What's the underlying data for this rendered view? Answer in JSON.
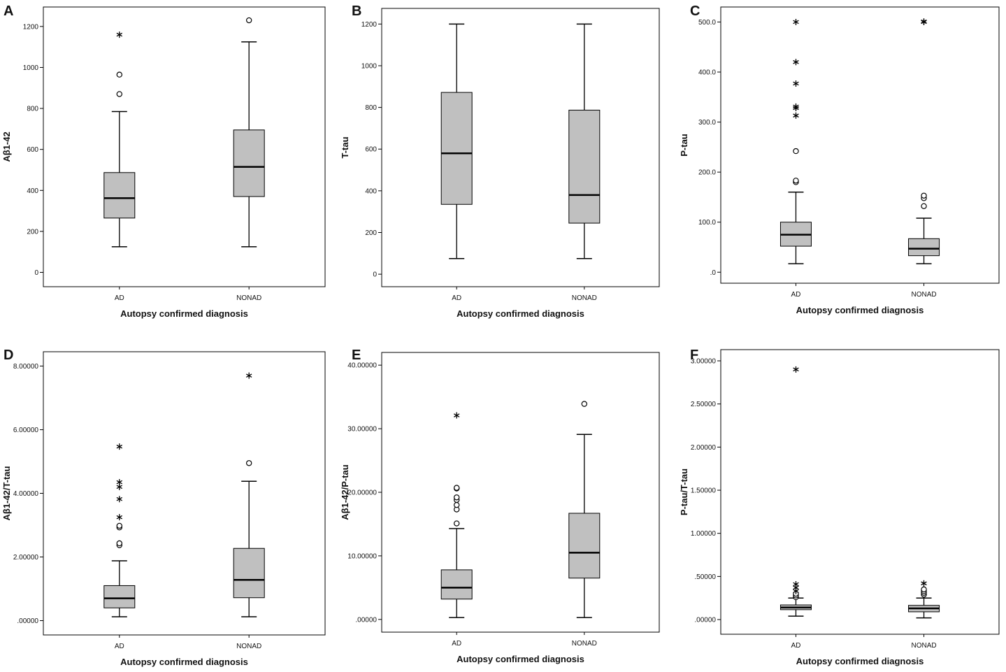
{
  "chart_data": [
    {
      "type": "box",
      "panel": "A",
      "ylabel": "Aβ1-42",
      "xlabel": "Autopsy confirmed diagnosis",
      "categories": [
        "AD",
        "NONAD"
      ],
      "ylim": [
        -70,
        1295
      ],
      "yticks": [
        0,
        200,
        400,
        600,
        800,
        1000,
        1200
      ],
      "ytick_labels": [
        "0",
        "200",
        "400",
        "600",
        "800",
        "1000",
        "1200"
      ],
      "boxes": [
        {
          "category": "AD",
          "min": 125,
          "q1": 265,
          "median": 362,
          "q3": 487,
          "max": 785,
          "outliers": [
            {
              "value": 870,
              "marker": "circle"
            },
            {
              "value": 965,
              "marker": "circle"
            },
            {
              "value": 1160,
              "marker": "star"
            }
          ]
        },
        {
          "category": "NONAD",
          "min": 125,
          "q1": 370,
          "median": 515,
          "q3": 695,
          "max": 1125,
          "outliers": [
            {
              "value": 1230,
              "marker": "circle"
            }
          ]
        }
      ]
    },
    {
      "type": "box",
      "panel": "B",
      "ylabel": "T-tau",
      "xlabel": "Autopsy confirmed diagnosis",
      "categories": [
        "AD",
        "NONAD"
      ],
      "ylim": [
        -60,
        1275
      ],
      "yticks": [
        0,
        200,
        400,
        600,
        800,
        1000,
        1200
      ],
      "ytick_labels": [
        "0",
        "200",
        "400",
        "600",
        "800",
        "1000",
        "1200"
      ],
      "boxes": [
        {
          "category": "AD",
          "min": 75,
          "q1": 335,
          "median": 580,
          "q3": 872,
          "max": 1200,
          "outliers": []
        },
        {
          "category": "NONAD",
          "min": 75,
          "q1": 245,
          "median": 380,
          "q3": 787,
          "max": 1200,
          "outliers": []
        }
      ]
    },
    {
      "type": "box",
      "panel": "C",
      "ylabel": "P-tau",
      "xlabel": "Autopsy confirmed diagnosis",
      "categories": [
        "AD",
        "NONAD"
      ],
      "ylim": [
        -22,
        530
      ],
      "yticks": [
        0,
        100,
        200,
        300,
        400,
        500
      ],
      "ytick_labels": [
        ".0",
        "100.0",
        "200.0",
        "300.0",
        "400.0",
        "500.0"
      ],
      "boxes": [
        {
          "category": "AD",
          "min": 17,
          "q1": 52,
          "median": 75,
          "q3": 100,
          "max": 160,
          "outliers": [
            {
              "value": 180,
              "marker": "circle"
            },
            {
              "value": 183,
              "marker": "circle"
            },
            {
              "value": 242,
              "marker": "circle"
            },
            {
              "value": 313,
              "marker": "star"
            },
            {
              "value": 328,
              "marker": "star"
            },
            {
              "value": 331,
              "marker": "star"
            },
            {
              "value": 377,
              "marker": "star"
            },
            {
              "value": 420,
              "marker": "star"
            },
            {
              "value": 500,
              "marker": "star"
            }
          ]
        },
        {
          "category": "NONAD",
          "min": 17,
          "q1": 33,
          "median": 47,
          "q3": 67,
          "max": 108,
          "outliers": [
            {
              "value": 132,
              "marker": "circle"
            },
            {
              "value": 148,
              "marker": "circle"
            },
            {
              "value": 153,
              "marker": "circle"
            },
            {
              "value": 500,
              "marker": "star"
            },
            {
              "value": 501,
              "marker": "star"
            }
          ]
        }
      ]
    },
    {
      "type": "box",
      "panel": "D",
      "ylabel": "Aβ1-42/T-tau",
      "xlabel": "Autopsy confirmed diagnosis",
      "categories": [
        "AD",
        "NONAD"
      ],
      "ylim": [
        -0.45,
        8.45
      ],
      "yticks": [
        0,
        2,
        4,
        6,
        8
      ],
      "ytick_labels": [
        ".00000",
        "2.00000",
        "4.00000",
        "6.00000",
        "8.00000"
      ],
      "boxes": [
        {
          "category": "AD",
          "min": 0.12,
          "q1": 0.4,
          "median": 0.7,
          "q3": 1.1,
          "max": 1.88,
          "outliers": [
            {
              "value": 2.37,
              "marker": "circle"
            },
            {
              "value": 2.43,
              "marker": "circle"
            },
            {
              "value": 2.93,
              "marker": "circle"
            },
            {
              "value": 2.98,
              "marker": "circle"
            },
            {
              "value": 3.25,
              "marker": "star"
            },
            {
              "value": 3.82,
              "marker": "star"
            },
            {
              "value": 4.2,
              "marker": "star"
            },
            {
              "value": 4.35,
              "marker": "star"
            },
            {
              "value": 5.47,
              "marker": "star"
            }
          ]
        },
        {
          "category": "NONAD",
          "min": 0.12,
          "q1": 0.72,
          "median": 1.28,
          "q3": 2.27,
          "max": 4.38,
          "outliers": [
            {
              "value": 4.95,
              "marker": "circle"
            },
            {
              "value": 7.7,
              "marker": "star"
            }
          ]
        }
      ]
    },
    {
      "type": "box",
      "panel": "E",
      "ylabel": "Aβ1-42/P-tau",
      "xlabel": "Autopsy confirmed diagnosis",
      "categories": [
        "AD",
        "NONAD"
      ],
      "ylim": [
        -2,
        42
      ],
      "yticks": [
        0,
        10,
        20,
        30,
        40
      ],
      "ytick_labels": [
        ".00000",
        "10.00000",
        "20.00000",
        "30.00000",
        "40.00000"
      ],
      "boxes": [
        {
          "category": "AD",
          "min": 0.3,
          "q1": 3.2,
          "median": 5.0,
          "q3": 7.8,
          "max": 14.3,
          "outliers": [
            {
              "value": 15.1,
              "marker": "circle"
            },
            {
              "value": 17.3,
              "marker": "circle"
            },
            {
              "value": 18.0,
              "marker": "circle"
            },
            {
              "value": 18.8,
              "marker": "circle"
            },
            {
              "value": 19.2,
              "marker": "circle"
            },
            {
              "value": 20.6,
              "marker": "circle"
            },
            {
              "value": 20.7,
              "marker": "circle"
            },
            {
              "value": 32.1,
              "marker": "star"
            }
          ]
        },
        {
          "category": "NONAD",
          "min": 0.3,
          "q1": 6.5,
          "median": 10.5,
          "q3": 16.7,
          "max": 29.1,
          "outliers": [
            {
              "value": 33.9,
              "marker": "circle"
            }
          ]
        }
      ]
    },
    {
      "type": "box",
      "panel": "F",
      "ylabel": "P-tau/T-tau",
      "xlabel": "Autopsy confirmed diagnosis",
      "categories": [
        "AD",
        "NONAD"
      ],
      "ylim": [
        -0.17,
        3.13
      ],
      "yticks": [
        0,
        0.5,
        1.0,
        1.5,
        2.0,
        2.5,
        3.0
      ],
      "ytick_labels": [
        ".00000",
        ".50000",
        "1.00000",
        "1.50000",
        "2.00000",
        "2.50000",
        "3.00000"
      ],
      "boxes": [
        {
          "category": "AD",
          "min": 0.04,
          "q1": 0.115,
          "median": 0.14,
          "q3": 0.17,
          "max": 0.25,
          "outliers": [
            {
              "value": 0.26,
              "marker": "circle"
            },
            {
              "value": 0.28,
              "marker": "circle"
            },
            {
              "value": 0.3,
              "marker": "circle"
            },
            {
              "value": 0.33,
              "marker": "star"
            },
            {
              "value": 0.37,
              "marker": "star"
            },
            {
              "value": 0.41,
              "marker": "star"
            },
            {
              "value": 2.9,
              "marker": "star"
            }
          ]
        },
        {
          "category": "NONAD",
          "min": 0.02,
          "q1": 0.09,
          "median": 0.13,
          "q3": 0.165,
          "max": 0.25,
          "outliers": [
            {
              "value": 0.29,
              "marker": "circle"
            },
            {
              "value": 0.31,
              "marker": "circle"
            },
            {
              "value": 0.33,
              "marker": "circle"
            },
            {
              "value": 0.35,
              "marker": "circle"
            },
            {
              "value": 0.42,
              "marker": "star"
            }
          ]
        }
      ]
    }
  ]
}
